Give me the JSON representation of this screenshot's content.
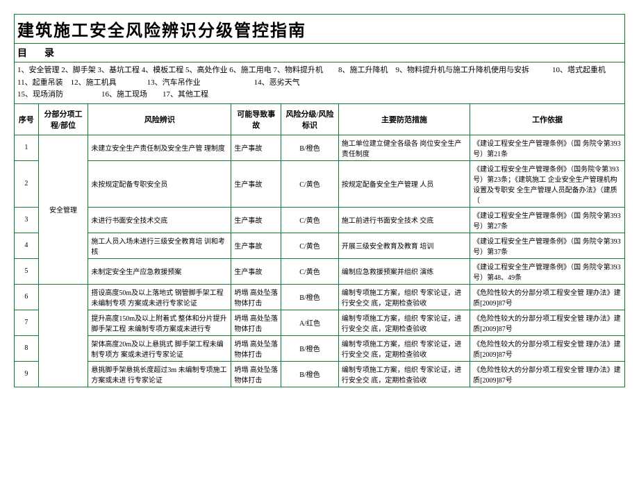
{
  "title": "建筑施工安全风险辨识分级管控指南",
  "toc_header": "目录",
  "toc_body": "1、安全管理 2、脚手架 3、基坑工程 4、模板工程 5、高处作业 6、施工用电 7、物料提升机　　8、施工升降机　9、物料提升机与施工升降机使用与安拆　　　10、塔式起重机　　　　　11、起重吊装　12、施工机具　　　　13、汽车吊作业　　　　　　　14、恶劣天气\n15、现场消防　　　　　16、施工现场　　17、其他工程",
  "headers": {
    "h_num": "序号",
    "h_sec": "分部分项工程/部位",
    "h_risk": "风险辨识",
    "h_acc": "可能导致事故",
    "h_lvl": "风险分级/风险标识",
    "h_meas": "主要防范措施",
    "h_basis": "工作依据"
  },
  "sec1": "安全管理",
  "rows": {
    "r1": {
      "num": "1",
      "risk": "未建立安全生产责任制及安全生产管 理制度",
      "acc": "生产事故",
      "lvl": "B/橙色",
      "meas": "施工单位建立健全各级各 岗位安全生产责任制度",
      "basis": "《建设工程安全生产管理条例》（国 务院令第393号）第21条"
    },
    "r2": {
      "num": "2",
      "risk": "未按规定配备专职安全员",
      "acc": "生产事故",
      "lvl": "C/黄色",
      "meas": "按规定配备安全生产管理 人员",
      "basis": "《建设工程安全生产管理条例》（国务院令第393号）第23条；《建筑施工 企业安全生产管理机构设置及专职安 全生产管理人员配备办法》（建质〔"
    },
    "r3": {
      "num": "3",
      "risk": "未进行书面安全技术交底",
      "acc": "生产事故",
      "lvl": "C/黄色",
      "meas": "施工前进行书面安全技术 交底",
      "basis": "《建设工程安全生产管理条例》（国 务院令第393号）第27条"
    },
    "r4": {
      "num": "4",
      "risk": "施工人员入场未进行三级安全教育培 训和考核",
      "acc": "生产事故",
      "lvl": "C/黄色",
      "meas": "开展三级安全教育及教育 培训",
      "basis": "《建设工程安全生产管理条例》（国 务院令第393号）第37条"
    },
    "r5": {
      "num": "5",
      "risk": "未制定安全生产应急救援预案",
      "acc": "生产事故",
      "lvl": "C/黄色",
      "meas": "编制应急救援预案并组织 演练",
      "basis": "《建设工程安全生产管理条例》（国 务院令第393号）第48、49条"
    },
    "r6": {
      "num": "6",
      "risk": "搭设高度50m及以上落地式 钢管脚手架工程未编制专项 方案或未进行专家论证",
      "acc": "坍塌 高处坠落 物体打击",
      "lvl": "B/橙色",
      "meas": "编制专项施工方案，组织 专家论证，进行安全交 底，定期检查验收",
      "basis": "《危险性较大的分部分项工程安全管 理办法》建质[2009]87号"
    },
    "r7": {
      "num": "7",
      "risk": "提升高度150m及以上附着式 整体和分片提升脚手架工程 未编制专项方案或未进行专",
      "acc": "坍塌 高处坠落 物体打击",
      "lvl": "A/红色",
      "meas": "编制专项施工方案，组织 专家论证，进行安全交 底，定期检查验收",
      "basis": "《危险性较大的分部分项工程安全管 理办法》建质[2009]87号"
    },
    "r8": {
      "num": "8",
      "risk": "架体高度20m及以上悬挑式 脚手架工程未编制专项方 案或未进行专家论证",
      "acc": "坍塌 高处坠落 物体打击",
      "lvl": "B/橙色",
      "meas": "编制专项施工方案，组织 专家论证，进行安全交 底，定期检查验收",
      "basis": "《危险性较大的分部分项工程安全管 理办法》建质[2009]87号"
    },
    "r9": {
      "num": "9",
      "risk": "悬挑脚手架悬挑长度超过3m 未编制专项施工方案或未进 行专家论证",
      "acc": "坍塌 高处坠落 物体打击",
      "lvl": "B/橙色",
      "meas": "编制专项施工方案，组织 专家论证，进行安全交 底，定期检查验收",
      "basis": "《危险性较大的分部分项工程安全管 理办法》建质[2009]87号"
    }
  }
}
